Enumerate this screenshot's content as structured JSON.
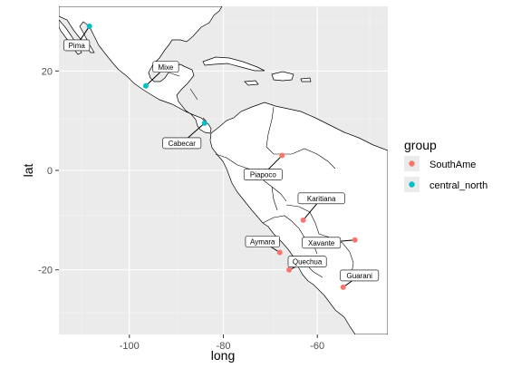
{
  "chart_data": {
    "type": "scatter",
    "title": "",
    "xlabel": "long",
    "ylabel": "lat",
    "xlim": [
      -115,
      -45
    ],
    "ylim": [
      -33,
      33
    ],
    "x_ticks": [
      -100,
      -80,
      -60
    ],
    "y_ticks": [
      -20,
      0,
      20
    ],
    "x_tick_labels": [
      "-100",
      "-80",
      "-60"
    ],
    "y_tick_labels": [
      "-20",
      "0",
      "20"
    ],
    "grid": true,
    "panel_background": "#ebebeb",
    "land_color": "#ffffff",
    "legend": {
      "title": "group",
      "position": "right",
      "entries": [
        {
          "label": "SouthAme",
          "color": "#F8766D"
        },
        {
          "label": "central_north",
          "color": "#00BFC4"
        }
      ]
    },
    "points": [
      {
        "name": "Pima",
        "long": -108.5,
        "lat": 29.0,
        "group": "central_north"
      },
      {
        "name": "Mixe",
        "long": -96.5,
        "lat": 17.0,
        "group": "central_north"
      },
      {
        "name": "Cabecar",
        "long": -84.0,
        "lat": 9.5,
        "group": "central_north"
      },
      {
        "name": "Piapoco",
        "long": -67.5,
        "lat": 3.0,
        "group": "SouthAme"
      },
      {
        "name": "Karitiana",
        "long": -63.0,
        "lat": -10.0,
        "group": "SouthAme"
      },
      {
        "name": "Aymara",
        "long": -68.0,
        "lat": -16.5,
        "group": "SouthAme"
      },
      {
        "name": "Xavante",
        "long": -52.0,
        "lat": -14.0,
        "group": "SouthAme"
      },
      {
        "name": "Quechua",
        "long": -66.0,
        "lat": -20.0,
        "group": "SouthAme"
      },
      {
        "name": "Guarani",
        "long": -54.5,
        "lat": -23.5,
        "group": "SouthAme"
      }
    ]
  }
}
